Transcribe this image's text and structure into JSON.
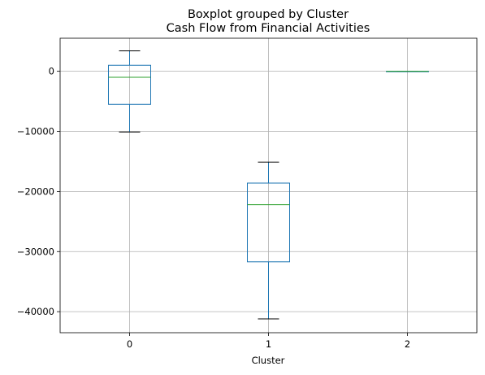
{
  "chart_data": {
    "type": "box",
    "suptitle": "Boxplot grouped by Cluster",
    "title": "Cash Flow from Financial Activities",
    "xlabel": "Cluster",
    "ylabel": "",
    "categories": [
      "0",
      "1",
      "2"
    ],
    "ylim": [
      -43500,
      5500
    ],
    "yticks": [
      0,
      -10000,
      -20000,
      -30000,
      -40000
    ],
    "ytick_labels": [
      "0",
      "−10000",
      "−20000",
      "−30000",
      "−40000"
    ],
    "grid": true,
    "boxes": [
      {
        "category": "0",
        "whisker_low": -10100,
        "q1": -5500,
        "median": -1000,
        "q3": 1000,
        "whisker_high": 3400
      },
      {
        "category": "1",
        "whisker_low": -41200,
        "q1": -31700,
        "median": -22200,
        "q3": -18600,
        "whisker_high": -15100
      },
      {
        "category": "2",
        "whisker_low": 0,
        "q1": 0,
        "median": 0,
        "q3": 0,
        "whisker_high": 0
      }
    ],
    "colors": {
      "box": "#1f77b4",
      "median": "#2ca02c",
      "grid": "#b0b0b0",
      "cap": "#000000"
    }
  }
}
